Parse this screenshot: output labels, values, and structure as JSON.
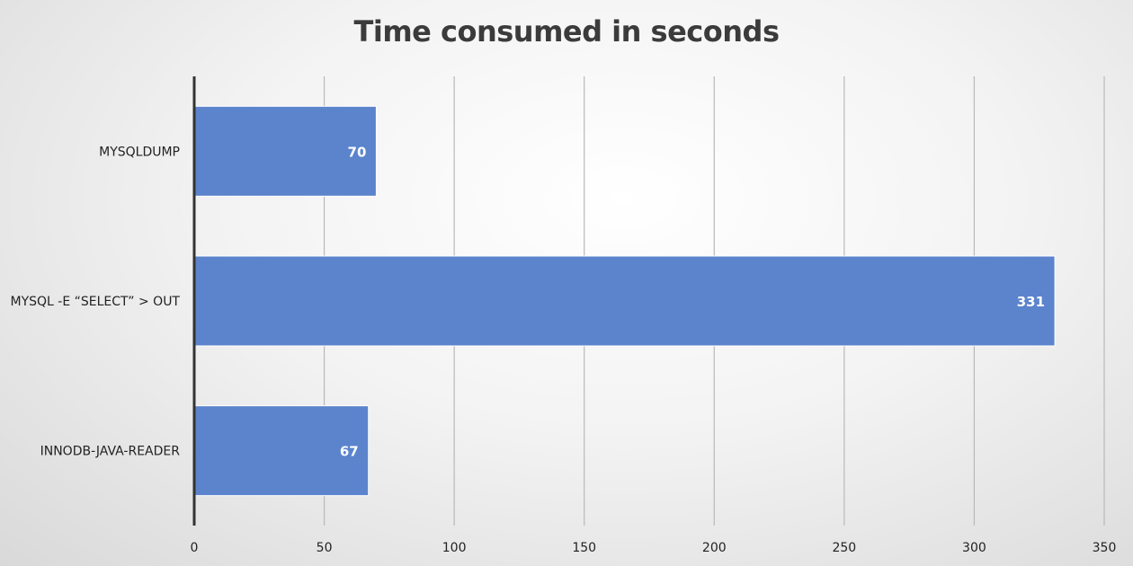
{
  "chart_data": {
    "type": "bar",
    "orientation": "horizontal",
    "title": "Time consumed in seconds",
    "categories": [
      "MYSQLDUMP",
      "MYSQL -E “SELECT” > OUT",
      "INNODB-JAVA-READER"
    ],
    "values": [
      70,
      331,
      67
    ],
    "xlim": [
      0,
      350
    ],
    "xticks": [
      0,
      50,
      100,
      150,
      200,
      250,
      300,
      350
    ],
    "grid": true,
    "legend": "none",
    "colors": {
      "bar": "#5b84cc",
      "bar_edge": "#ffffff",
      "grid": "#b9b9b9",
      "axis": "#333333"
    }
  }
}
